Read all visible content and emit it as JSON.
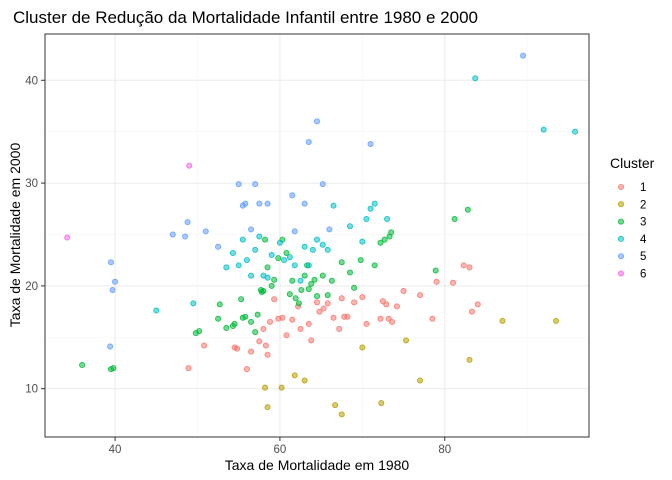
{
  "chart_data": {
    "type": "scatter",
    "title": "Cluster de Redução da Mortalidade Infantil entre 1980 e 2000",
    "xlabel": "Taxa de Mortalidade em 1980",
    "ylabel": "Taxa de Mortalidade em 2000",
    "xlim": [
      31.5,
      97.5
    ],
    "ylim": [
      5.3,
      44.5
    ],
    "x_ticks": [
      40,
      60,
      80
    ],
    "y_ticks": [
      10,
      20,
      30,
      40
    ],
    "grid": true,
    "legend": {
      "title": "Cluster",
      "position": "right"
    },
    "series": [
      {
        "name": "1",
        "color": "#F8766D",
        "points": [
          [
            50.8,
            14.2
          ],
          [
            54.5,
            14.0
          ],
          [
            54.8,
            13.9
          ],
          [
            56.0,
            11.9
          ],
          [
            56.5,
            13.6
          ],
          [
            57.5,
            14.6
          ],
          [
            58.0,
            15.8
          ],
          [
            58.3,
            14.2
          ],
          [
            58.5,
            13.3
          ],
          [
            58.8,
            16.5
          ],
          [
            59.3,
            18.7
          ],
          [
            59.8,
            16.8
          ],
          [
            60.3,
            16.9
          ],
          [
            60.8,
            15.2
          ],
          [
            61.5,
            16.7
          ],
          [
            62.2,
            18.0
          ],
          [
            62.5,
            15.8
          ],
          [
            63.5,
            16.3
          ],
          [
            63.8,
            14.7
          ],
          [
            64.5,
            18.4
          ],
          [
            64.8,
            17.5
          ],
          [
            65.3,
            17.8
          ],
          [
            65.8,
            18.3
          ],
          [
            66.5,
            16.9
          ],
          [
            67.2,
            15.8
          ],
          [
            67.5,
            18.8
          ],
          [
            67.8,
            17.0
          ],
          [
            68.2,
            17.0
          ],
          [
            69.0,
            18.4
          ],
          [
            70.0,
            18.9
          ],
          [
            70.5,
            16.3
          ],
          [
            72.2,
            16.8
          ],
          [
            72.5,
            18.5
          ],
          [
            72.9,
            18.2
          ],
          [
            73.2,
            16.8
          ],
          [
            73.6,
            16.5
          ],
          [
            74.2,
            18.0
          ],
          [
            75.0,
            19.5
          ],
          [
            77.0,
            19.1
          ],
          [
            78.5,
            16.8
          ],
          [
            79.0,
            20.4
          ],
          [
            81.0,
            20.3
          ],
          [
            82.3,
            22.0
          ],
          [
            83.0,
            21.8
          ],
          [
            83.3,
            17.5
          ],
          [
            84.0,
            18.2
          ],
          [
            48.9,
            12.0
          ]
        ]
      },
      {
        "name": "2",
        "color": "#B79F00",
        "points": [
          [
            58.2,
            10.1
          ],
          [
            58.5,
            8.2
          ],
          [
            60.2,
            10.1
          ],
          [
            61.8,
            11.3
          ],
          [
            63.0,
            10.8
          ],
          [
            66.7,
            8.4
          ],
          [
            67.5,
            7.5
          ],
          [
            70.0,
            14.0
          ],
          [
            72.3,
            8.6
          ],
          [
            75.3,
            14.7
          ],
          [
            77.0,
            10.8
          ],
          [
            83.0,
            12.8
          ],
          [
            87.0,
            16.6
          ],
          [
            93.5,
            16.6
          ]
        ]
      },
      {
        "name": "3",
        "color": "#00BA38",
        "points": [
          [
            36.0,
            12.3
          ],
          [
            39.5,
            11.9
          ],
          [
            39.8,
            12.0
          ],
          [
            49.8,
            15.4
          ],
          [
            50.2,
            15.6
          ],
          [
            52.5,
            16.8
          ],
          [
            52.7,
            18.2
          ],
          [
            53.5,
            15.9
          ],
          [
            54.3,
            16.1
          ],
          [
            54.5,
            16.3
          ],
          [
            55.5,
            16.9
          ],
          [
            55.8,
            17.0
          ],
          [
            55.3,
            18.7
          ],
          [
            56.5,
            16.5
          ],
          [
            57.0,
            15.5
          ],
          [
            57.3,
            17.2
          ],
          [
            57.7,
            19.6
          ],
          [
            57.8,
            19.4
          ],
          [
            58.0,
            19.5
          ],
          [
            58.5,
            21.8
          ],
          [
            58.2,
            24.5
          ],
          [
            59.0,
            20.0
          ],
          [
            59.3,
            20.6
          ],
          [
            59.8,
            22.7
          ],
          [
            60.3,
            24.5
          ],
          [
            60.8,
            23.2
          ],
          [
            61.2,
            19.2
          ],
          [
            61.5,
            20.5
          ],
          [
            61.9,
            18.8
          ],
          [
            62.3,
            18.3
          ],
          [
            62.6,
            19.6
          ],
          [
            63.0,
            21.0
          ],
          [
            63.3,
            22.0
          ],
          [
            63.5,
            19.7
          ],
          [
            63.8,
            20.2
          ],
          [
            64.2,
            20.6
          ],
          [
            64.5,
            19.0
          ],
          [
            65.2,
            21.0
          ],
          [
            65.8,
            19.1
          ],
          [
            66.3,
            20.5
          ],
          [
            67.5,
            22.3
          ],
          [
            68.5,
            21.3
          ],
          [
            69.0,
            19.8
          ],
          [
            69.8,
            22.5
          ],
          [
            71.5,
            22.0
          ],
          [
            72.2,
            24.2
          ],
          [
            72.7,
            24.5
          ],
          [
            73.3,
            24.8
          ],
          [
            73.5,
            25.2
          ],
          [
            78.9,
            21.5
          ],
          [
            81.2,
            26.5
          ],
          [
            82.8,
            27.4
          ]
        ]
      },
      {
        "name": "4",
        "color": "#00BFC4",
        "points": [
          [
            45.0,
            17.6
          ],
          [
            49.5,
            18.3
          ],
          [
            53.5,
            21.8
          ],
          [
            54.3,
            23.2
          ],
          [
            55.0,
            22.0
          ],
          [
            55.5,
            24.5
          ],
          [
            56.0,
            22.5
          ],
          [
            56.5,
            21.0
          ],
          [
            57.0,
            23.5
          ],
          [
            57.5,
            24.8
          ],
          [
            58.0,
            21.0
          ],
          [
            58.5,
            20.8
          ],
          [
            59.0,
            23.0
          ],
          [
            60.0,
            24.2
          ],
          [
            60.5,
            22.5
          ],
          [
            61.2,
            22.8
          ],
          [
            61.8,
            22.0
          ],
          [
            62.5,
            20.5
          ],
          [
            63.0,
            23.8
          ],
          [
            63.5,
            22.0
          ],
          [
            64.0,
            23.5
          ],
          [
            64.5,
            24.5
          ],
          [
            65.2,
            24.0
          ],
          [
            65.8,
            23.5
          ],
          [
            66.5,
            27.8
          ],
          [
            68.5,
            25.8
          ],
          [
            70.0,
            24.3
          ],
          [
            70.5,
            26.5
          ],
          [
            71.0,
            27.5
          ],
          [
            71.5,
            28.0
          ],
          [
            73.0,
            26.5
          ],
          [
            92.0,
            35.2
          ],
          [
            95.8,
            35.0
          ],
          [
            83.7,
            40.2
          ]
        ]
      },
      {
        "name": "5",
        "color": "#619CFF",
        "points": [
          [
            39.5,
            22.3
          ],
          [
            39.7,
            19.6
          ],
          [
            40.0,
            20.4
          ],
          [
            39.4,
            14.1
          ],
          [
            47.0,
            25.0
          ],
          [
            48.5,
            24.8
          ],
          [
            48.8,
            26.2
          ],
          [
            51.0,
            25.3
          ],
          [
            52.5,
            23.8
          ],
          [
            55.0,
            29.9
          ],
          [
            55.5,
            27.8
          ],
          [
            55.8,
            28.0
          ],
          [
            56.5,
            25.5
          ],
          [
            57.0,
            29.9
          ],
          [
            57.5,
            28.0
          ],
          [
            58.5,
            28.0
          ],
          [
            61.5,
            28.8
          ],
          [
            61.8,
            25.3
          ],
          [
            63.0,
            28.0
          ],
          [
            63.5,
            34.0
          ],
          [
            64.5,
            36.0
          ],
          [
            65.2,
            29.9
          ],
          [
            66.0,
            25.5
          ],
          [
            71.0,
            33.8
          ],
          [
            89.5,
            42.4
          ]
        ]
      },
      {
        "name": "6",
        "color": "#F564E3",
        "points": [
          [
            34.2,
            24.7
          ],
          [
            49.0,
            31.7
          ]
        ]
      }
    ]
  }
}
